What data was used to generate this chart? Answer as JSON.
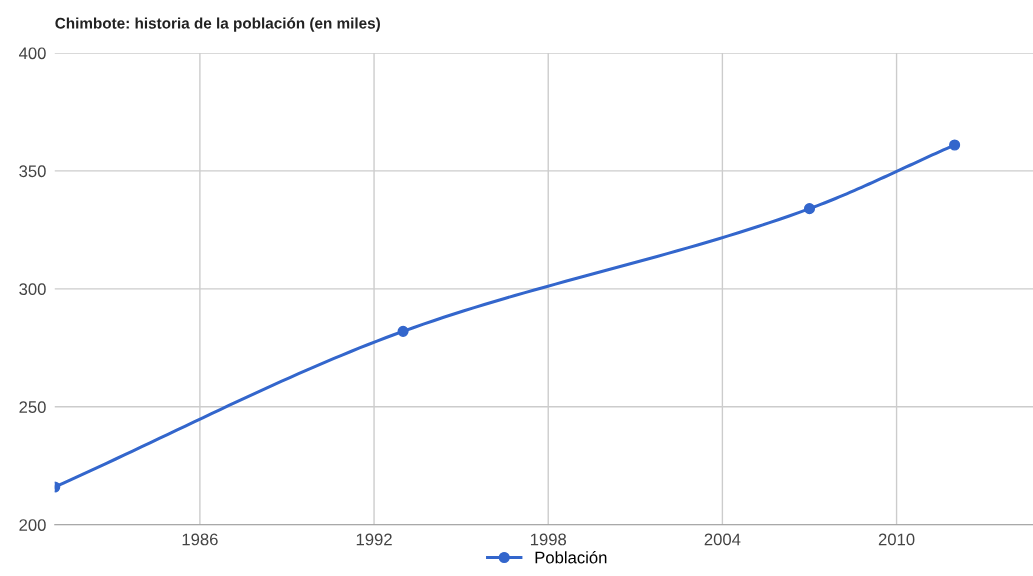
{
  "chart_data": {
    "type": "line",
    "title": "Chimbote: historia de la población (en miles)",
    "x": [
      1981,
      1993,
      2007,
      2012
    ],
    "series": [
      {
        "name": "Población",
        "color": "#3366cc",
        "values": [
          216,
          282,
          334,
          361
        ]
      }
    ],
    "xlim": [
      1981,
      2014.7
    ],
    "xticks": [
      1986,
      1992,
      1998,
      2004,
      2010
    ],
    "ylim": [
      200,
      400
    ],
    "yticks": [
      200,
      250,
      300,
      350,
      400
    ],
    "grid": true,
    "legend": "bottom",
    "marker": "circle",
    "line_style": "solid"
  }
}
